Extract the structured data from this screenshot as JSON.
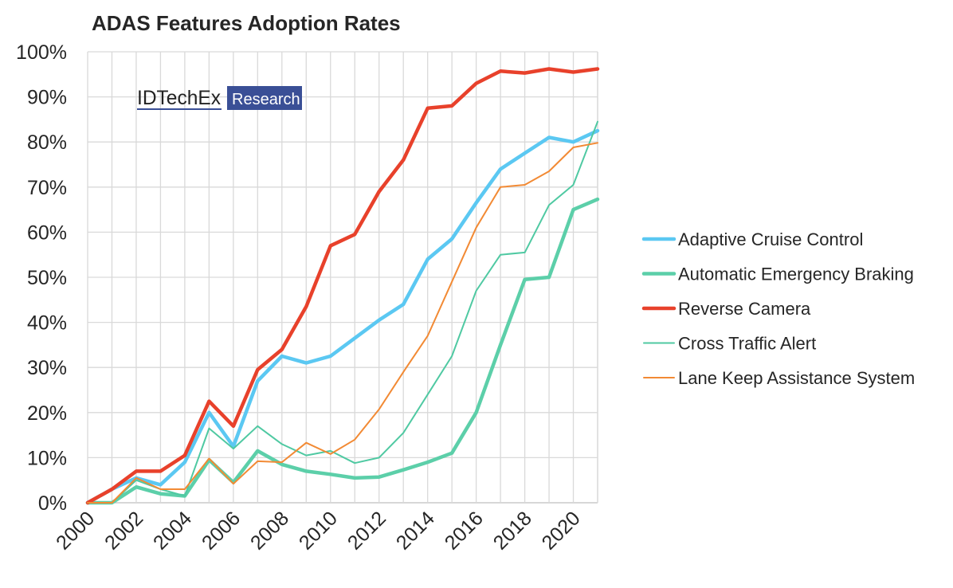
{
  "chart_data": {
    "type": "line",
    "title": "ADAS Features Adoption Rates",
    "xlabel": "",
    "ylabel": "",
    "x": [
      2000,
      2001,
      2002,
      2003,
      2004,
      2005,
      2006,
      2007,
      2008,
      2009,
      2010,
      2011,
      2012,
      2013,
      2014,
      2015,
      2016,
      2017,
      2018,
      2019,
      2020,
      2021
    ],
    "x_ticks": [
      "2000",
      "2002",
      "2004",
      "2006",
      "2008",
      "2010",
      "2012",
      "2014",
      "2016",
      "2018",
      "2020"
    ],
    "x_tick_values": [
      2000,
      2002,
      2004,
      2006,
      2008,
      2010,
      2012,
      2014,
      2016,
      2018,
      2020
    ],
    "xlim": [
      2000,
      2021
    ],
    "ylim": [
      0,
      100
    ],
    "y_ticks": [
      "0%",
      "10%",
      "20%",
      "30%",
      "40%",
      "50%",
      "60%",
      "70%",
      "80%",
      "90%",
      "100%"
    ],
    "y_tick_values": [
      0,
      10,
      20,
      30,
      40,
      50,
      60,
      70,
      80,
      90,
      100
    ],
    "grid": true,
    "legend_position": "right",
    "series": [
      {
        "name": "Adaptive Cruise Control",
        "color": "#5bc8f2",
        "width": 4.5,
        "values": [
          0,
          3,
          5.5,
          4,
          9,
          20,
          12.5,
          27,
          32.5,
          31,
          32.5,
          36.5,
          40.5,
          44,
          54,
          58.5,
          66.5,
          74,
          77.5,
          81,
          80,
          82.5
        ]
      },
      {
        "name": "Automatic Emergency Braking",
        "color": "#5ccfa9",
        "width": 4.5,
        "values": [
          0,
          0,
          3.5,
          2,
          1.5,
          9.5,
          4.5,
          11.5,
          8.5,
          7,
          6.3,
          5.5,
          5.7,
          7.3,
          9,
          11,
          20,
          35,
          49.5,
          50,
          65,
          67.3
        ]
      },
      {
        "name": "Reverse Camera",
        "color": "#e8412b",
        "width": 4.5,
        "values": [
          0,
          3,
          7,
          7,
          10.5,
          22.5,
          17,
          29.5,
          34,
          43.5,
          57,
          59.5,
          69,
          76,
          87.5,
          88,
          93,
          95.7,
          95.3,
          96.2,
          95.5,
          96.2
        ]
      },
      {
        "name": "Cross Traffic Alert",
        "color": "#4fc9a2",
        "width": 2,
        "values": [
          0,
          0,
          5,
          3,
          1.5,
          16.5,
          12,
          17,
          13,
          10.5,
          11.5,
          8.8,
          10,
          15.5,
          24,
          32.5,
          47,
          55,
          55.5,
          66,
          70.5,
          84.5
        ]
      },
      {
        "name": "Lane Keep Assistance System",
        "color": "#f28a34",
        "width": 2,
        "values": [
          0,
          0,
          5.5,
          3,
          3,
          9.8,
          4.2,
          9.2,
          9,
          13.3,
          10.8,
          14,
          20.7,
          29,
          37,
          49,
          61,
          70,
          70.5,
          73.5,
          78.8,
          79.8
        ]
      }
    ]
  },
  "logo": {
    "brand": "IDTechEx",
    "tag": "Research",
    "color": "#3a4f96"
  }
}
